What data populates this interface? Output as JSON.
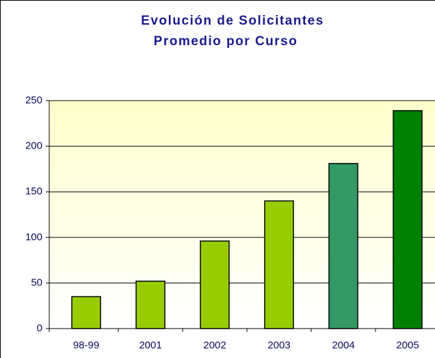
{
  "chart_data": {
    "type": "bar",
    "title": [
      "Evolución de Solicitantes",
      "Promedio por Curso"
    ],
    "categories": [
      "98-99",
      "2001",
      "2002",
      "2003",
      "2004",
      "2005"
    ],
    "values": [
      35,
      52,
      96,
      140,
      181,
      239
    ],
    "colors": [
      "#99cc00",
      "#99cc00",
      "#99cc00",
      "#99cc00",
      "#339966",
      "#008000"
    ],
    "ylim": [
      0,
      250
    ],
    "yticks": [
      0,
      50,
      100,
      150,
      200,
      250
    ],
    "grid": true
  }
}
